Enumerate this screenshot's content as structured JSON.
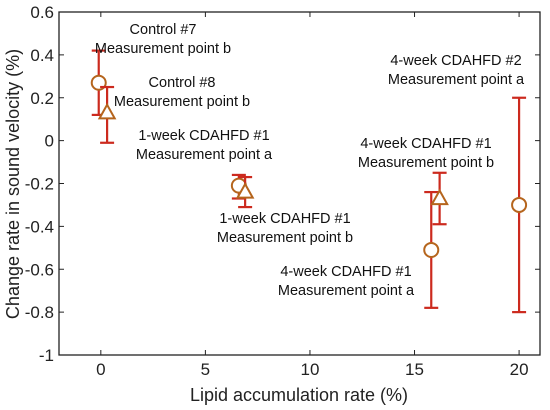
{
  "chart_data": {
    "type": "scatter",
    "xlabel": "Lipid accumulation rate (%)",
    "ylabel": "Change rate in sound velocity (%)",
    "xlim": [
      -2,
      21
    ],
    "ylim": [
      -1,
      0.6
    ],
    "xticks": [
      "0",
      "5",
      "10",
      "15",
      "20"
    ],
    "yticks": [
      "0.6",
      "0.4",
      "0.2",
      "0",
      "-0.2",
      "-0.4",
      "-0.6",
      "-0.8",
      "-1"
    ],
    "grid": false,
    "colors": {
      "marker": "#b5651d",
      "errorbar": "#cc2a1e"
    },
    "points": [
      {
        "marker": "circle",
        "x": -0.1,
        "y": 0.27,
        "ylow": 0.12,
        "yhigh": 0.42
      },
      {
        "marker": "triangle",
        "x": 0.3,
        "y": 0.13,
        "ylow": -0.01,
        "yhigh": 0.25
      },
      {
        "marker": "circle",
        "x": 6.6,
        "y": -0.21,
        "ylow": -0.27,
        "yhigh": -0.16
      },
      {
        "marker": "triangle",
        "x": 6.9,
        "y": -0.24,
        "ylow": -0.31,
        "yhigh": -0.17
      },
      {
        "marker": "circle",
        "x": 15.8,
        "y": -0.51,
        "ylow": -0.78,
        "yhigh": -0.24
      },
      {
        "marker": "triangle",
        "x": 16.2,
        "y": -0.27,
        "ylow": -0.39,
        "yhigh": -0.15
      },
      {
        "marker": "circle",
        "x": 20.0,
        "y": -0.3,
        "ylow": -0.8,
        "yhigh": 0.2
      }
    ],
    "annotations": [
      {
        "line1": "Control #7",
        "line2": "Measurement point b"
      },
      {
        "line1": "Control #8",
        "line2": "Measurement point b"
      },
      {
        "line1": "1-week CDAHFD #1",
        "line2": "Measurement point a"
      },
      {
        "line1": "1-week CDAHFD #1",
        "line2": "Measurement point b"
      },
      {
        "line1": "4-week CDAHFD #2",
        "line2": "Measurement point a"
      },
      {
        "line1": "4-week CDAHFD #1",
        "line2": "Measurement point b"
      },
      {
        "line1": "4-week CDAHFD #1",
        "line2": "Measurement point a"
      }
    ]
  }
}
